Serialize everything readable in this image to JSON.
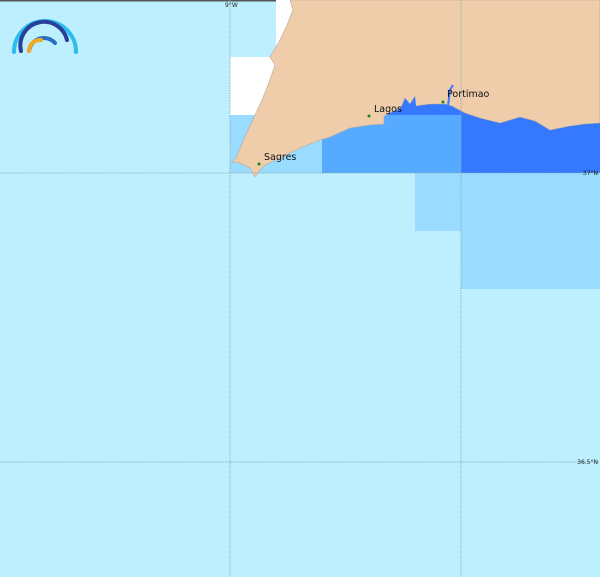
{
  "map": {
    "places": [
      {
        "name": "Sagres"
      },
      {
        "name": "Lagos"
      },
      {
        "name": "Portimao"
      }
    ],
    "graticule": {
      "longitude_labels": [
        "9°W"
      ],
      "latitude_labels": [
        "37°N",
        "36.5°N"
      ]
    },
    "colors": {
      "land": "#efcdab",
      "sea_lightest": "#bdefff",
      "sea_light": "#9adcff",
      "sea_medium": "#56aaff",
      "sea_dark": "#3479ff",
      "place_marker": "#1a8a1a",
      "no_data": "#ffffff"
    },
    "logo_icon": "wave-arcs-logo"
  }
}
